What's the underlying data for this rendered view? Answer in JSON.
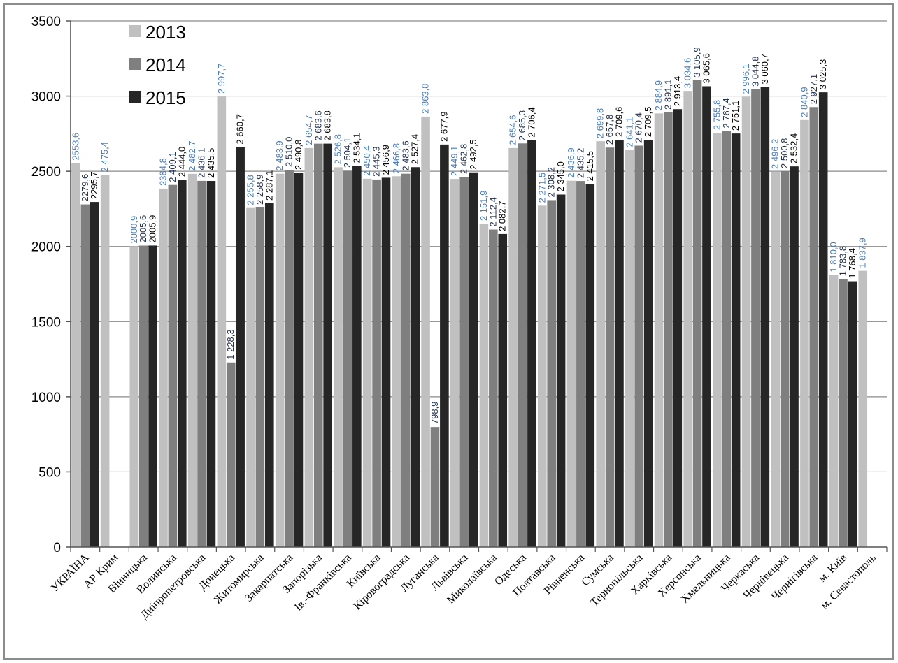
{
  "chart_data": {
    "type": "bar",
    "title": "",
    "xlabel": "",
    "ylabel": "",
    "ylim": [
      0,
      3500
    ],
    "yticks": [
      0,
      500,
      1000,
      1500,
      2000,
      2500,
      3000,
      3500
    ],
    "grid": true,
    "legend_position": "top-left",
    "categories": [
      "УКРАЇНА",
      "АР Крим",
      "Вінницька",
      "Волинська",
      "Дніпропетровська",
      "Донецька",
      "Житомирська",
      "Закарпатська",
      "Запорізька",
      "Ів.-Франківська",
      "Київська",
      "Кіровоградська",
      "Луганська",
      "Львівська",
      "Миколаївська",
      "Одеська",
      "Полтавська",
      "Рівненська",
      "Сумська",
      "Тернопільська",
      "Харківська",
      "Херсонська",
      "Хмельницька",
      "Черкаська",
      "Чернівецька",
      "Чернігівська",
      "м. Київ",
      "м. Севастополь"
    ],
    "series": [
      {
        "name": "2013",
        "color": "#c0c0c0",
        "label_color": "#4a7ebb",
        "values": [
          2553.6,
          2475.4,
          2000.9,
          2384.8,
          2482.7,
          2997.7,
          2255.8,
          2483.9,
          2654.7,
          2526.8,
          2450.4,
          2466.8,
          2863.8,
          2449.1,
          2151.9,
          2654.6,
          2271.5,
          2436.9,
          2699.8,
          2641.1,
          2884.9,
          3034.6,
          2755.8,
          2996.1,
          2496.2,
          2840.9,
          1810.0,
          1837.9
        ],
        "labels": [
          "2553,6",
          "2 475,4",
          "2000,9",
          "2384,8",
          "2 482,7",
          "2 997,7",
          "2 255,8",
          "2 483,9",
          "2 654,7",
          "2 526,8",
          "2 450,4",
          "2 466,8",
          "2 863,8",
          "2 449,1",
          "2 151,9",
          "2 654,6",
          "2 271,5",
          "2 436,9",
          "2 699,8",
          "2 641,1",
          "2 884,9",
          "3 034,6",
          "2 755,8",
          "2 996,1",
          "2 496,2",
          "2 840,9",
          "1 810,0",
          "1 837,9"
        ]
      },
      {
        "name": "2014",
        "color": "#7f7f7f",
        "label_color": "#1f2f4f",
        "values": [
          2279.6,
          null,
          2005.6,
          2409.1,
          2436.1,
          1228.3,
          2258.9,
          2510.0,
          2683.6,
          2504.1,
          2445.3,
          2483.6,
          798.9,
          2462.8,
          2112.4,
          2685.3,
          2308.2,
          2435.2,
          2657.8,
          2670.4,
          2891.1,
          3105.9,
          2767.4,
          3044.8,
          2500.8,
          2927.1,
          1783.8,
          null
        ],
        "labels": [
          "2279,6",
          "",
          "2005,6",
          "2 409,1",
          "2 436,1",
          "1 228,3",
          "2 258,9",
          "2 510,0",
          "2 683,6",
          "2 504,1",
          "2 445,3",
          "2 483,6",
          "798,9",
          "2 462,8",
          "2 112,4",
          "2 685,3",
          "2 308,2",
          "2 435,2",
          "2 657,8",
          "2 670,4",
          "2 891,1",
          "3 105,9",
          "2 767,4",
          "3 044,8",
          "2 500,8",
          "2 927,1",
          "1 783,8",
          ""
        ]
      },
      {
        "name": "2015",
        "color": "#262626",
        "label_color": "#000000",
        "values": [
          2295.7,
          null,
          2005.9,
          2444.0,
          2435.5,
          2660.7,
          2287.1,
          2490.8,
          2683.8,
          2534.1,
          2456.9,
          2527.4,
          2677.9,
          2492.5,
          2082.7,
          2706.4,
          2345.0,
          2415.5,
          2709.6,
          2709.5,
          2913.4,
          3065.6,
          2751.1,
          3060.7,
          2532.4,
          3025.3,
          1768.4,
          null
        ],
        "labels": [
          "2295,7",
          "",
          "2005,9",
          "2 444,0",
          "2 435,5",
          "2 660,7",
          "2 287,1",
          "2 490,8",
          "2 683,8",
          "2 534,1",
          "2 456,9",
          "2 527,4",
          "2 677,9",
          "2 492,5",
          "2 082,7",
          "2 706,4",
          "2 345,0",
          "2 415,5",
          "2 709,6",
          "2 709,5",
          "2 913,4",
          "3 065,6",
          "2 751,1",
          "3 060,7",
          "2 532,4",
          "3 025,3",
          "1 768,4",
          ""
        ]
      }
    ]
  }
}
